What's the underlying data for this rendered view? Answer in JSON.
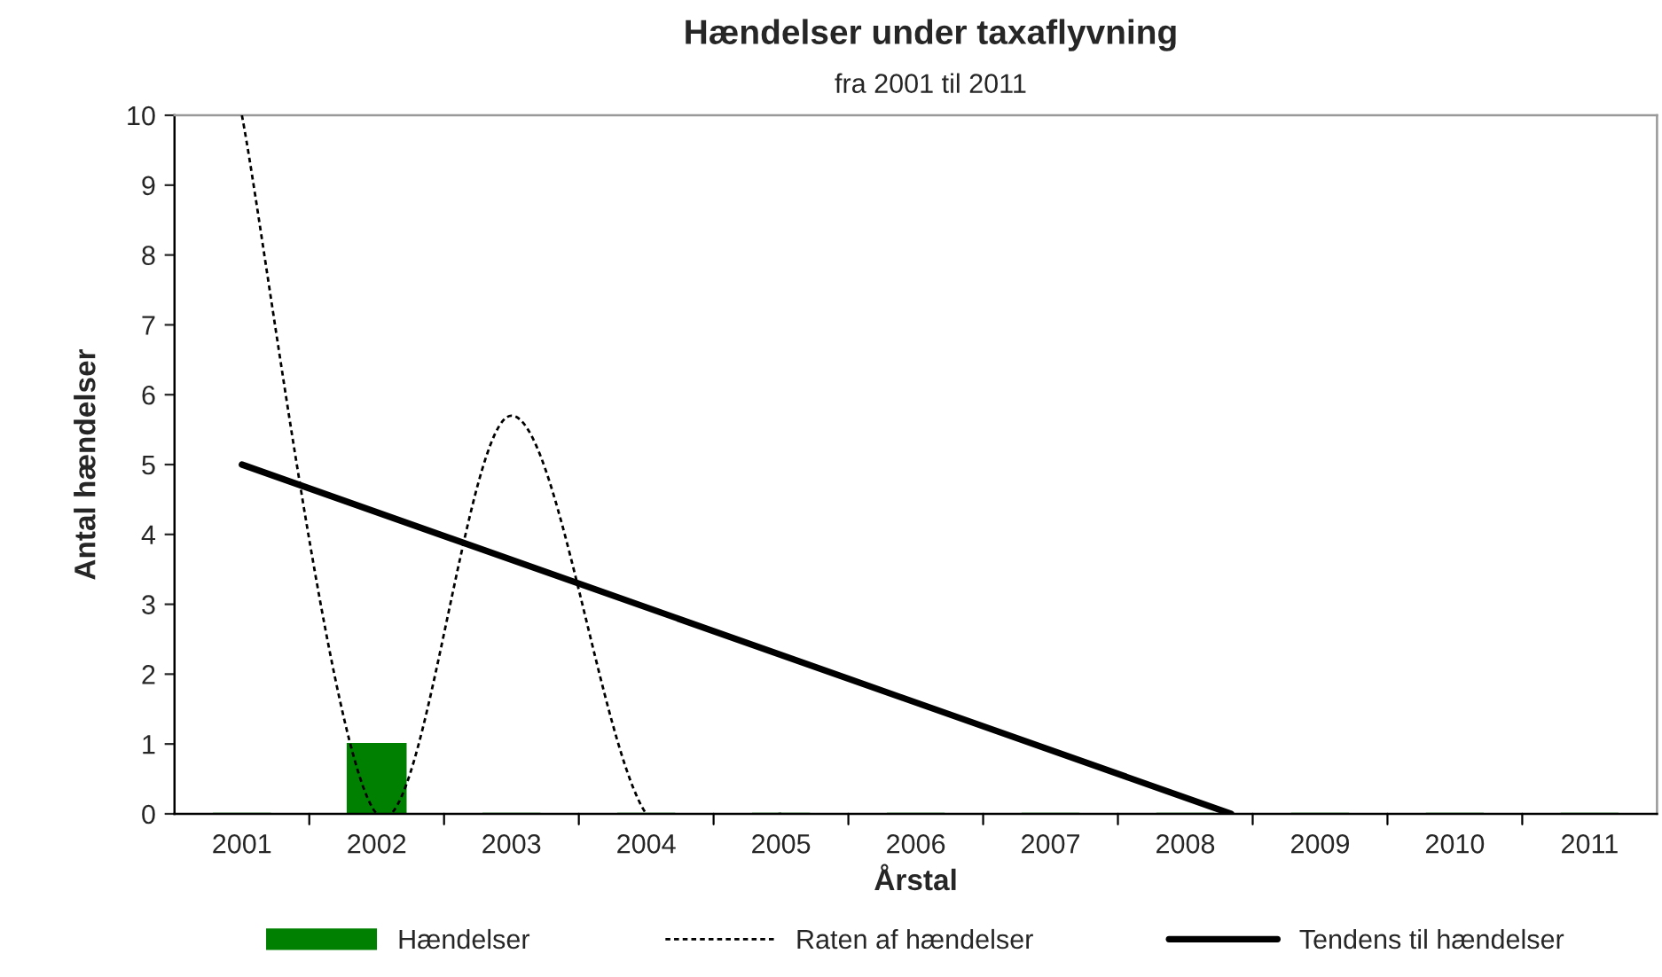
{
  "chart_data": {
    "type": "bar",
    "title": "Hændelser under taxaflyvning",
    "subtitle": "fra 2001 til 2011",
    "xlabel": "Årstal",
    "ylabel": "Antal hændelser",
    "x": [
      2001,
      2002,
      2003,
      2004,
      2005,
      2006,
      2007,
      2008,
      2009,
      2010,
      2011
    ],
    "xlim": [
      2000.5,
      2011.5
    ],
    "xticks": [
      2001,
      2002,
      2003,
      2004,
      2005,
      2006,
      2007,
      2008,
      2009,
      2010,
      2011
    ],
    "ylim": [
      0,
      10
    ],
    "yticks": [
      0,
      1,
      2,
      3,
      4,
      5,
      6,
      7,
      8,
      9,
      10
    ],
    "series": [
      {
        "name": "Hændelser",
        "color": "#008000",
        "values": [
          0,
          1,
          0,
          0,
          0,
          0,
          0,
          0,
          0,
          0,
          0
        ]
      },
      {
        "name": "Raten af hændelser",
        "type": "line",
        "color": "#000000",
        "line_style": "dotted",
        "x": [
          2001,
          2002,
          2003,
          2004,
          2005
        ],
        "values": [
          10,
          0,
          5.7,
          0,
          0
        ]
      },
      {
        "name": "Tendens til hændelser",
        "type": "line",
        "color": "#000000",
        "line_style": "solid",
        "x": [
          2001,
          2008.34
        ],
        "values": [
          5.0,
          0
        ]
      }
    ],
    "grid": false,
    "legend": "bottom"
  }
}
